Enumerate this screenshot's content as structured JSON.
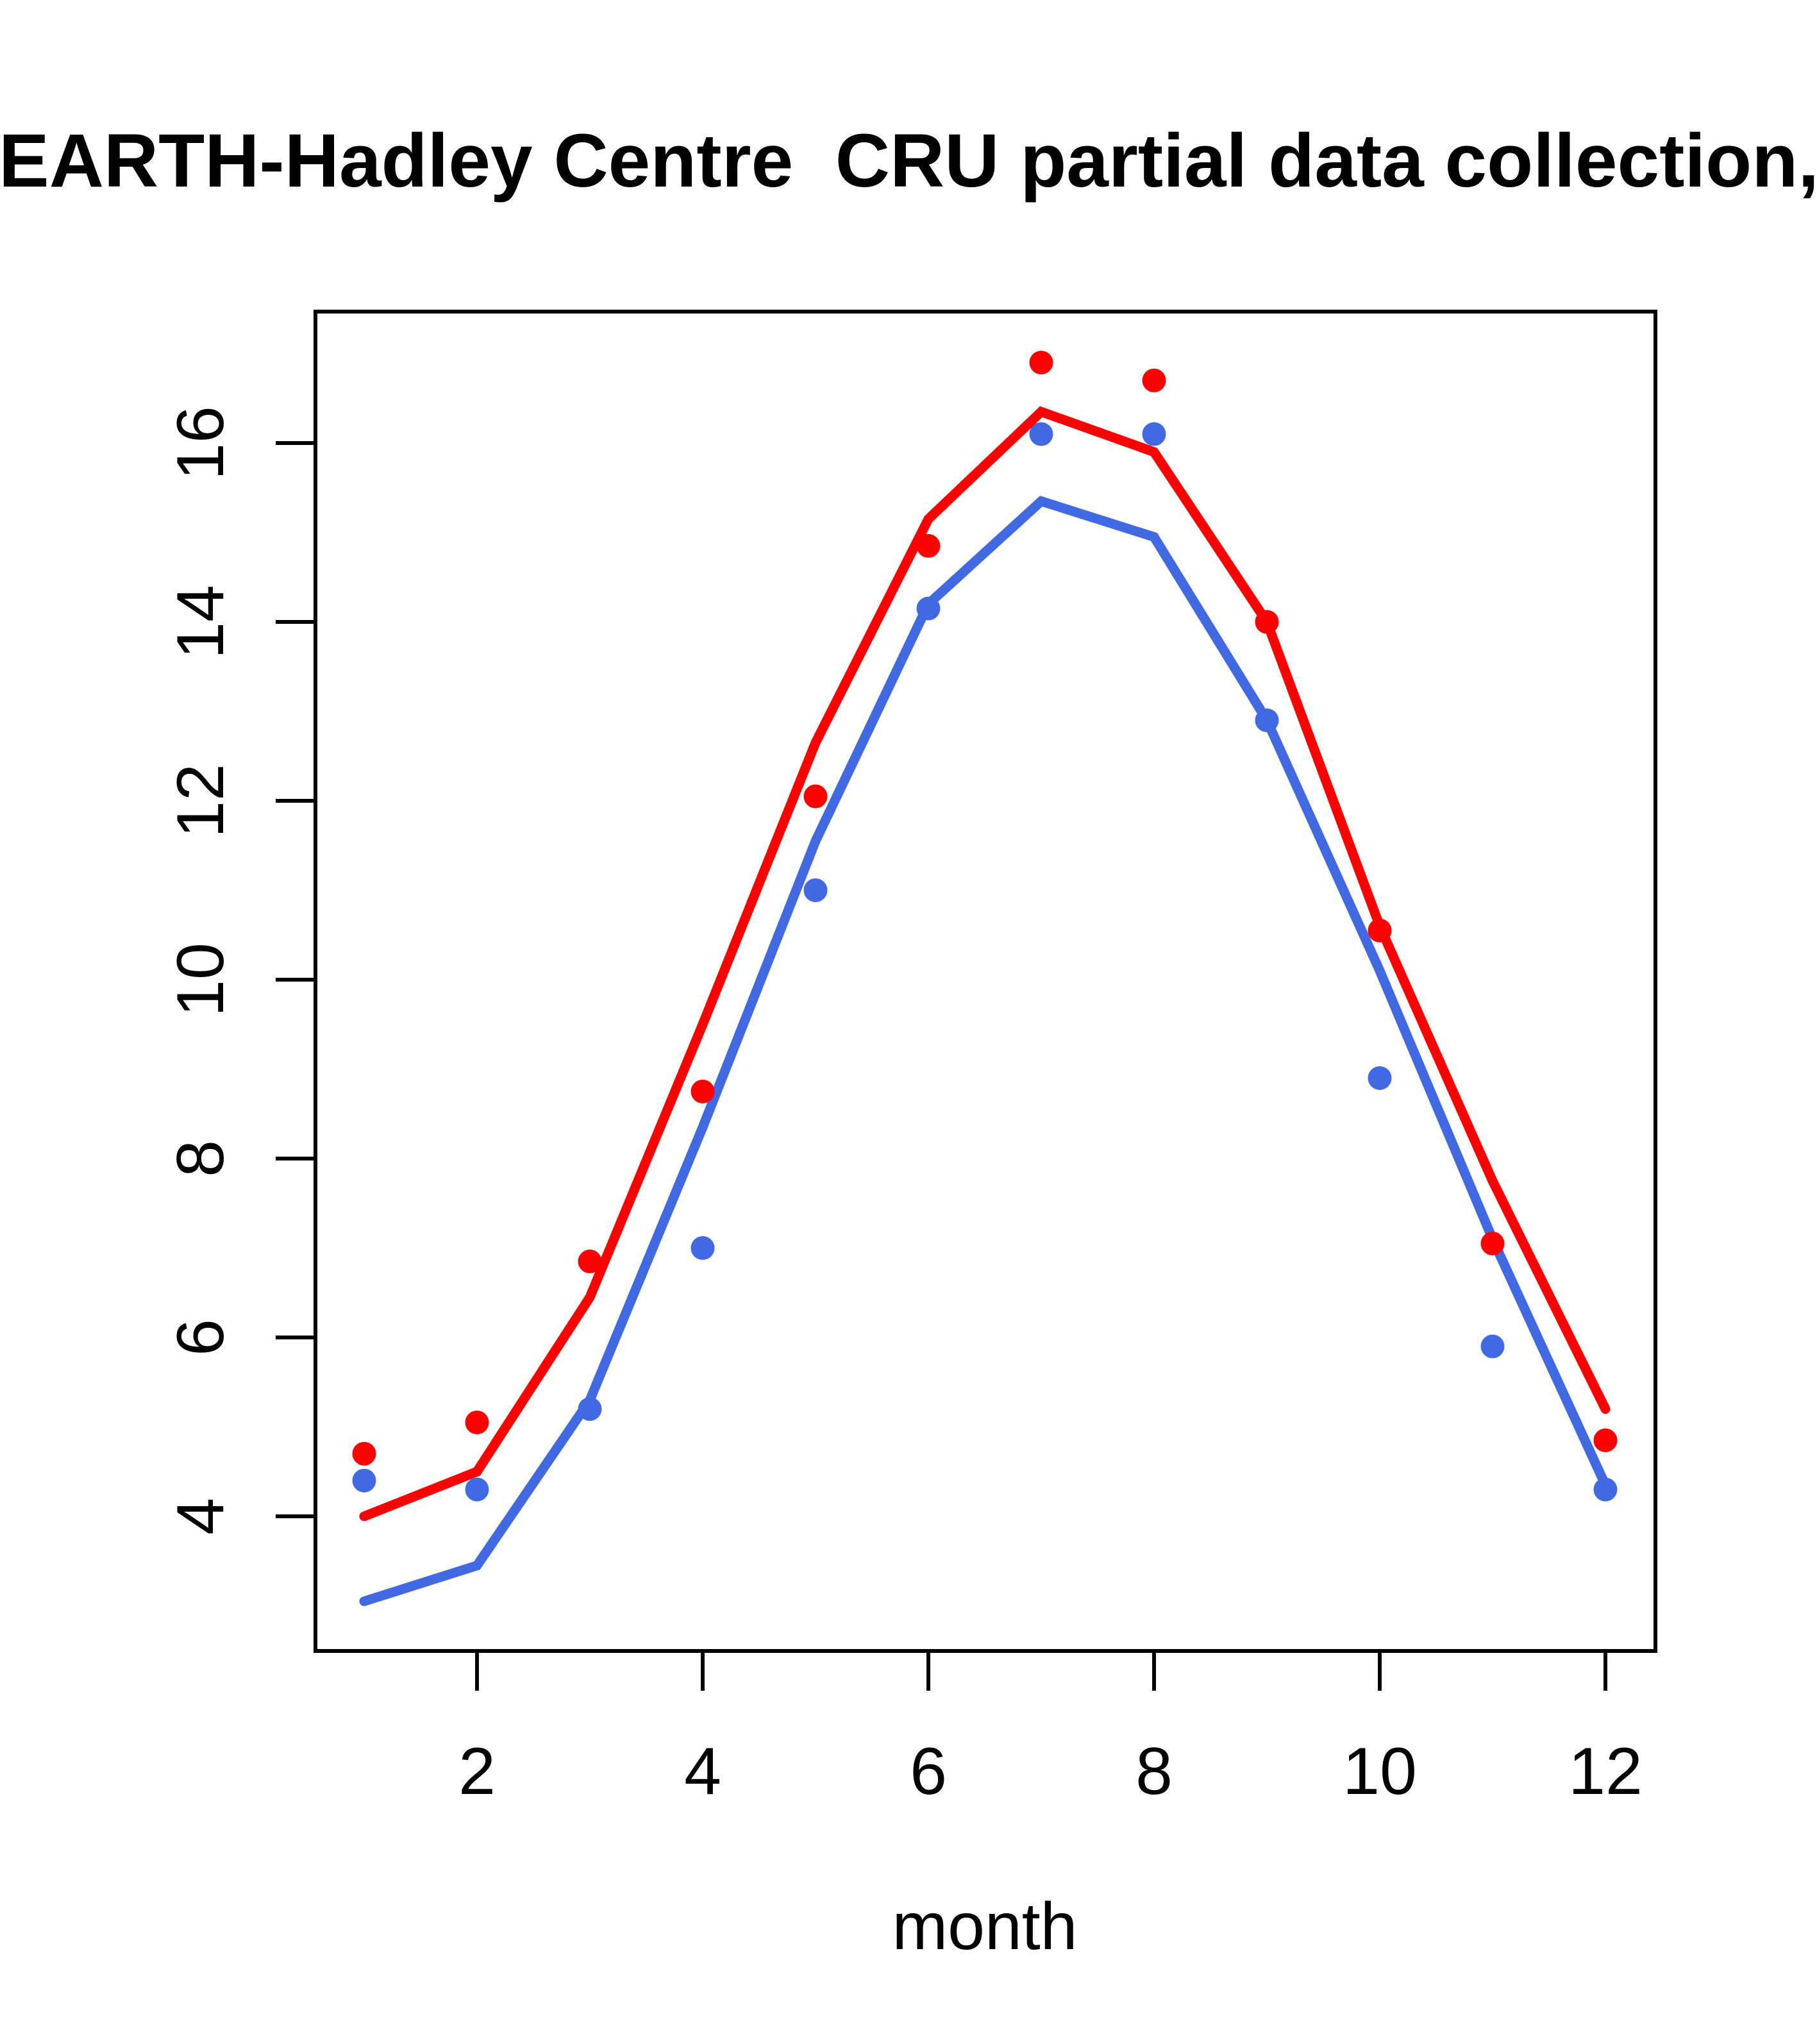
{
  "title": "EARTH-Hadley Centre  CRU partial data collection,",
  "axes": {
    "xlabel": "month",
    "x_tick_values": [
      2,
      4,
      6,
      8,
      10,
      12
    ],
    "y_tick_values": [
      4,
      6,
      8,
      10,
      12,
      14,
      16
    ]
  },
  "colors": {
    "red_series": "#ff0000",
    "blue_series": "#4169e1",
    "axis": "#000000",
    "background": "#ffffff"
  },
  "chart_data": {
    "type": "line",
    "title": "EARTH-Hadley Centre  CRU partial data collection,",
    "xlabel": "month",
    "ylabel": "",
    "x": [
      1,
      2,
      3,
      4,
      5,
      6,
      7,
      8,
      9,
      10,
      11,
      12
    ],
    "xlim": [
      0.56,
      12.44
    ],
    "ylim": [
      2.5,
      17.5
    ],
    "grid": false,
    "legend": "none",
    "series": [
      {
        "name": "blue-line",
        "style": "line",
        "color": "#4169e1",
        "values": [
          3.05,
          3.45,
          5.3,
          8.35,
          11.55,
          14.2,
          15.35,
          14.95,
          12.9,
          10.1,
          7.1,
          4.35
        ]
      },
      {
        "name": "blue-points",
        "style": "scatter",
        "color": "#4169e1",
        "values": [
          4.4,
          4.3,
          5.2,
          7.0,
          11.0,
          14.15,
          16.1,
          16.1,
          12.9,
          8.9,
          5.9,
          4.3
        ]
      },
      {
        "name": "red-line",
        "style": "line",
        "color": "#ff0000",
        "values": [
          4.0,
          4.5,
          6.45,
          9.5,
          12.65,
          15.15,
          16.35,
          15.9,
          14.0,
          10.6,
          7.75,
          5.2
        ]
      },
      {
        "name": "red-points",
        "style": "scatter",
        "color": "#ff0000",
        "values": [
          4.7,
          5.05,
          6.85,
          8.75,
          12.05,
          14.85,
          16.9,
          16.7,
          14.0,
          10.55,
          7.05,
          4.85
        ]
      }
    ]
  }
}
